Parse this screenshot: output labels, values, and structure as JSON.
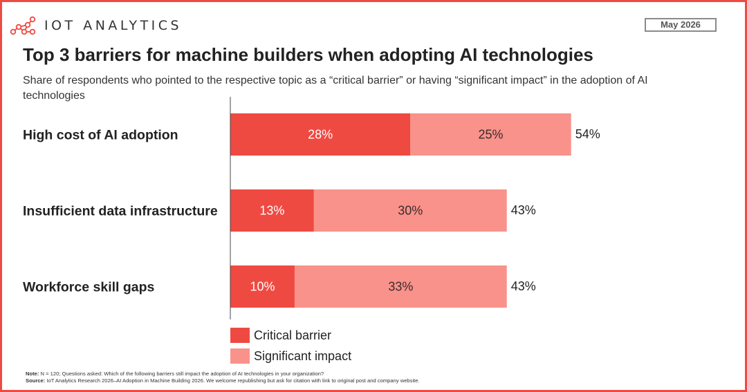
{
  "brand": {
    "logo_text": "IOT ANALYTICS",
    "logo_icon": "network-nodes-icon",
    "accent_color": "#ef4a42"
  },
  "date_badge": "May 2026",
  "header": {
    "title": "Top 3 barriers for machine builders when adopting AI technologies",
    "subtitle": "Share of respondents who pointed to the respective topic as a “critical barrier” or having “significant impact” in the adoption of AI technologies"
  },
  "chart_data": {
    "type": "bar",
    "orientation": "horizontal",
    "stacked": true,
    "title": "Top 3 barriers for machine builders when adopting AI technologies",
    "subtitle": "Share of respondents who pointed to the respective topic as a “critical barrier” or having “significant impact” in the adoption of AI technologies",
    "categories": [
      "High cost of AI adoption",
      "Insufficient data infrastructure",
      "Workforce skill gaps"
    ],
    "series": [
      {
        "name": "Critical barrier",
        "values": [
          28,
          13,
          10
        ],
        "labels": [
          "28%",
          "13%",
          "10%"
        ],
        "color": "#ef4a42"
      },
      {
        "name": "Significant impact",
        "values": [
          25,
          30,
          33
        ],
        "labels": [
          "25%",
          "30%",
          "33%"
        ],
        "color": "#f8928b"
      }
    ],
    "totals": [
      54,
      43,
      43
    ],
    "total_labels": [
      "54%",
      "43%",
      "43%"
    ],
    "xlim": [
      0,
      54
    ],
    "grid": false,
    "legend_position": "bottom-left"
  },
  "footnote": {
    "note_label": "Note:",
    "note_text": "N = 120; Questions asked: Which of the following barriers still impact the adoption of AI technologies in your organization?",
    "source_label": "Source:",
    "source_text": "IoT Analytics Research 2026–AI Adoption in Machine Building 2026. We welcome republishing but ask for citation with link to original post and company website."
  }
}
